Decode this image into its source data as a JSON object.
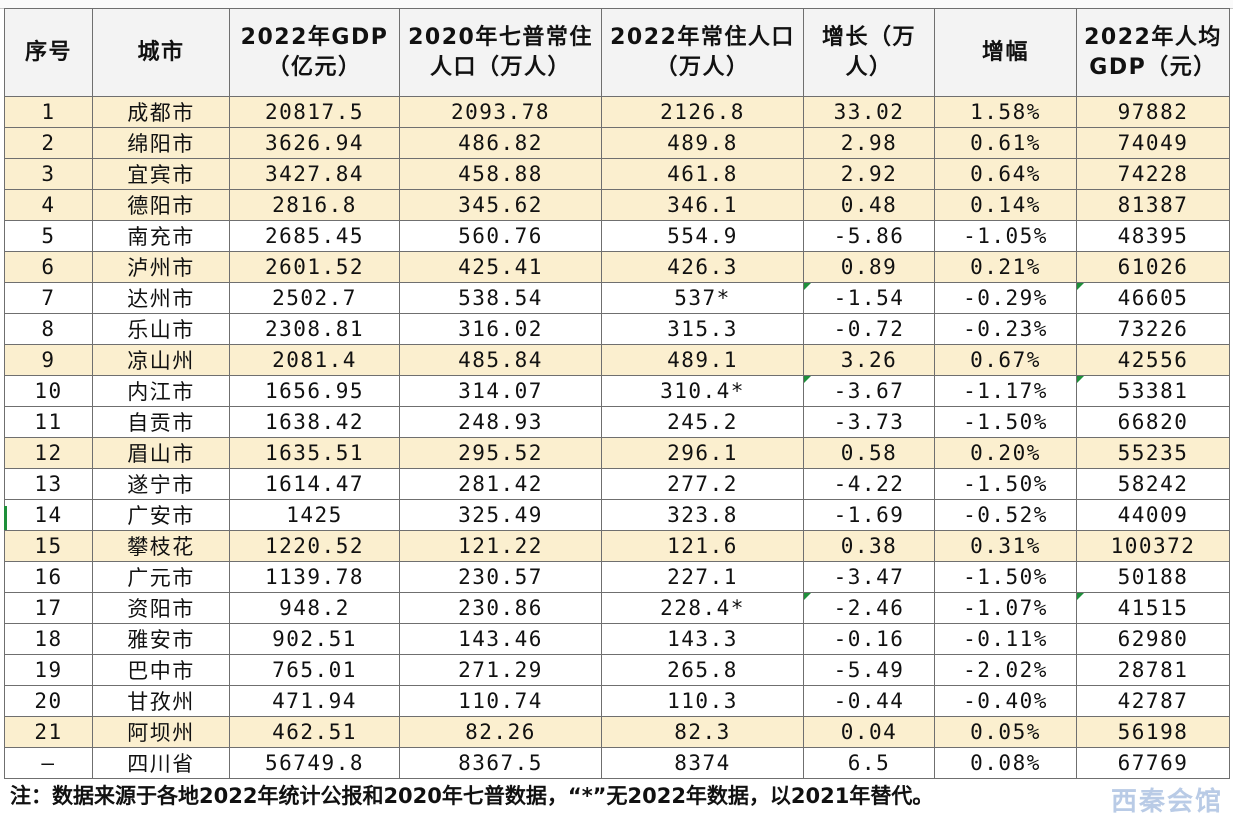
{
  "header": {
    "no": "序号",
    "city": "城市",
    "gdp": "2022年GDP（亿元）",
    "pop2020": "2020年七普常住人口（万人）",
    "pop2022": "2022年常住人口（万人）",
    "growth": "增长（万人）",
    "rate": "增幅",
    "pergdp": "2022年人均GDP（元）"
  },
  "rows": [
    {
      "no": "1",
      "city": "成都市",
      "gdp": "20817.5",
      "pop2020": "2093.78",
      "pop2022": "2126.8",
      "growth": "33.02",
      "rate": "1.58%",
      "pergdp": "97882",
      "highlight": true
    },
    {
      "no": "2",
      "city": "绵阳市",
      "gdp": "3626.94",
      "pop2020": "486.82",
      "pop2022": "489.8",
      "growth": "2.98",
      "rate": "0.61%",
      "pergdp": "74049",
      "highlight": true
    },
    {
      "no": "3",
      "city": "宜宾市",
      "gdp": "3427.84",
      "pop2020": "458.88",
      "pop2022": "461.8",
      "growth": "2.92",
      "rate": "0.64%",
      "pergdp": "74228",
      "highlight": true
    },
    {
      "no": "4",
      "city": "德阳市",
      "gdp": "2816.8",
      "pop2020": "345.62",
      "pop2022": "346.1",
      "growth": "0.48",
      "rate": "0.14%",
      "pergdp": "81387",
      "highlight": true
    },
    {
      "no": "5",
      "city": "南充市",
      "gdp": "2685.45",
      "pop2020": "560.76",
      "pop2022": "554.9",
      "growth": "-5.86",
      "rate": "-1.05%",
      "pergdp": "48395",
      "highlight": false
    },
    {
      "no": "6",
      "city": "泸州市",
      "gdp": "2601.52",
      "pop2020": "425.41",
      "pop2022": "426.3",
      "growth": "0.89",
      "rate": "0.21%",
      "pergdp": "61026",
      "highlight": true
    },
    {
      "no": "7",
      "city": "达州市",
      "gdp": "2502.7",
      "pop2020": "538.54",
      "pop2022": "537*",
      "growth": "-1.54",
      "rate": "-0.29%",
      "pergdp": "46605",
      "highlight": false
    },
    {
      "no": "8",
      "city": "乐山市",
      "gdp": "2308.81",
      "pop2020": "316.02",
      "pop2022": "315.3",
      "growth": "-0.72",
      "rate": "-0.23%",
      "pergdp": "73226",
      "highlight": false
    },
    {
      "no": "9",
      "city": "凉山州",
      "gdp": "2081.4",
      "pop2020": "485.84",
      "pop2022": "489.1",
      "growth": "3.26",
      "rate": "0.67%",
      "pergdp": "42556",
      "highlight": true
    },
    {
      "no": "10",
      "city": "内江市",
      "gdp": "1656.95",
      "pop2020": "314.07",
      "pop2022": "310.4*",
      "growth": "-3.67",
      "rate": "-1.17%",
      "pergdp": "53381",
      "highlight": false
    },
    {
      "no": "11",
      "city": "自贡市",
      "gdp": "1638.42",
      "pop2020": "248.93",
      "pop2022": "245.2",
      "growth": "-3.73",
      "rate": "-1.50%",
      "pergdp": "66820",
      "highlight": false
    },
    {
      "no": "12",
      "city": "眉山市",
      "gdp": "1635.51",
      "pop2020": "295.52",
      "pop2022": "296.1",
      "growth": "0.58",
      "rate": "0.20%",
      "pergdp": "55235",
      "highlight": true
    },
    {
      "no": "13",
      "city": "遂宁市",
      "gdp": "1614.47",
      "pop2020": "281.42",
      "pop2022": "277.2",
      "growth": "-4.22",
      "rate": "-1.50%",
      "pergdp": "58242",
      "highlight": false
    },
    {
      "no": "14",
      "city": "广安市",
      "gdp": "1425",
      "pop2020": "325.49",
      "pop2022": "323.8",
      "growth": "-1.69",
      "rate": "-0.52%",
      "pergdp": "44009",
      "highlight": false
    },
    {
      "no": "15",
      "city": "攀枝花",
      "gdp": "1220.52",
      "pop2020": "121.22",
      "pop2022": "121.6",
      "growth": "0.38",
      "rate": "0.31%",
      "pergdp": "100372",
      "highlight": true
    },
    {
      "no": "16",
      "city": "广元市",
      "gdp": "1139.78",
      "pop2020": "230.57",
      "pop2022": "227.1",
      "growth": "-3.47",
      "rate": "-1.50%",
      "pergdp": "50188",
      "highlight": false
    },
    {
      "no": "17",
      "city": "资阳市",
      "gdp": "948.2",
      "pop2020": "230.86",
      "pop2022": "228.4*",
      "growth": "-2.46",
      "rate": "-1.07%",
      "pergdp": "41515",
      "highlight": false
    },
    {
      "no": "18",
      "city": "雅安市",
      "gdp": "902.51",
      "pop2020": "143.46",
      "pop2022": "143.3",
      "growth": "-0.16",
      "rate": "-0.11%",
      "pergdp": "62980",
      "highlight": false
    },
    {
      "no": "19",
      "city": "巴中市",
      "gdp": "765.01",
      "pop2020": "271.29",
      "pop2022": "265.8",
      "growth": "-5.49",
      "rate": "-2.02%",
      "pergdp": "28781",
      "highlight": false
    },
    {
      "no": "20",
      "city": "甘孜州",
      "gdp": "471.94",
      "pop2020": "110.74",
      "pop2022": "110.3",
      "growth": "-0.44",
      "rate": "-0.40%",
      "pergdp": "42787",
      "highlight": false
    },
    {
      "no": "21",
      "city": "阿坝州",
      "gdp": "462.51",
      "pop2020": "82.26",
      "pop2022": "82.3",
      "growth": "0.04",
      "rate": "0.05%",
      "pergdp": "56198",
      "highlight": true
    },
    {
      "no": "—",
      "city": "四川省",
      "gdp": "56749.8",
      "pop2020": "8367.5",
      "pop2022": "8374",
      "growth": "6.5",
      "rate": "0.08%",
      "pergdp": "67769",
      "highlight": false
    }
  ],
  "note": "注：数据来源于各地2022年统计公报和2020年七普数据，“*”无2022年数据，以2021年替代。",
  "watermark": "西秦会馆",
  "colors": {
    "highlight": "#fbefcf",
    "grid": "#6f6f6f",
    "flag": "#1e8f3a"
  }
}
